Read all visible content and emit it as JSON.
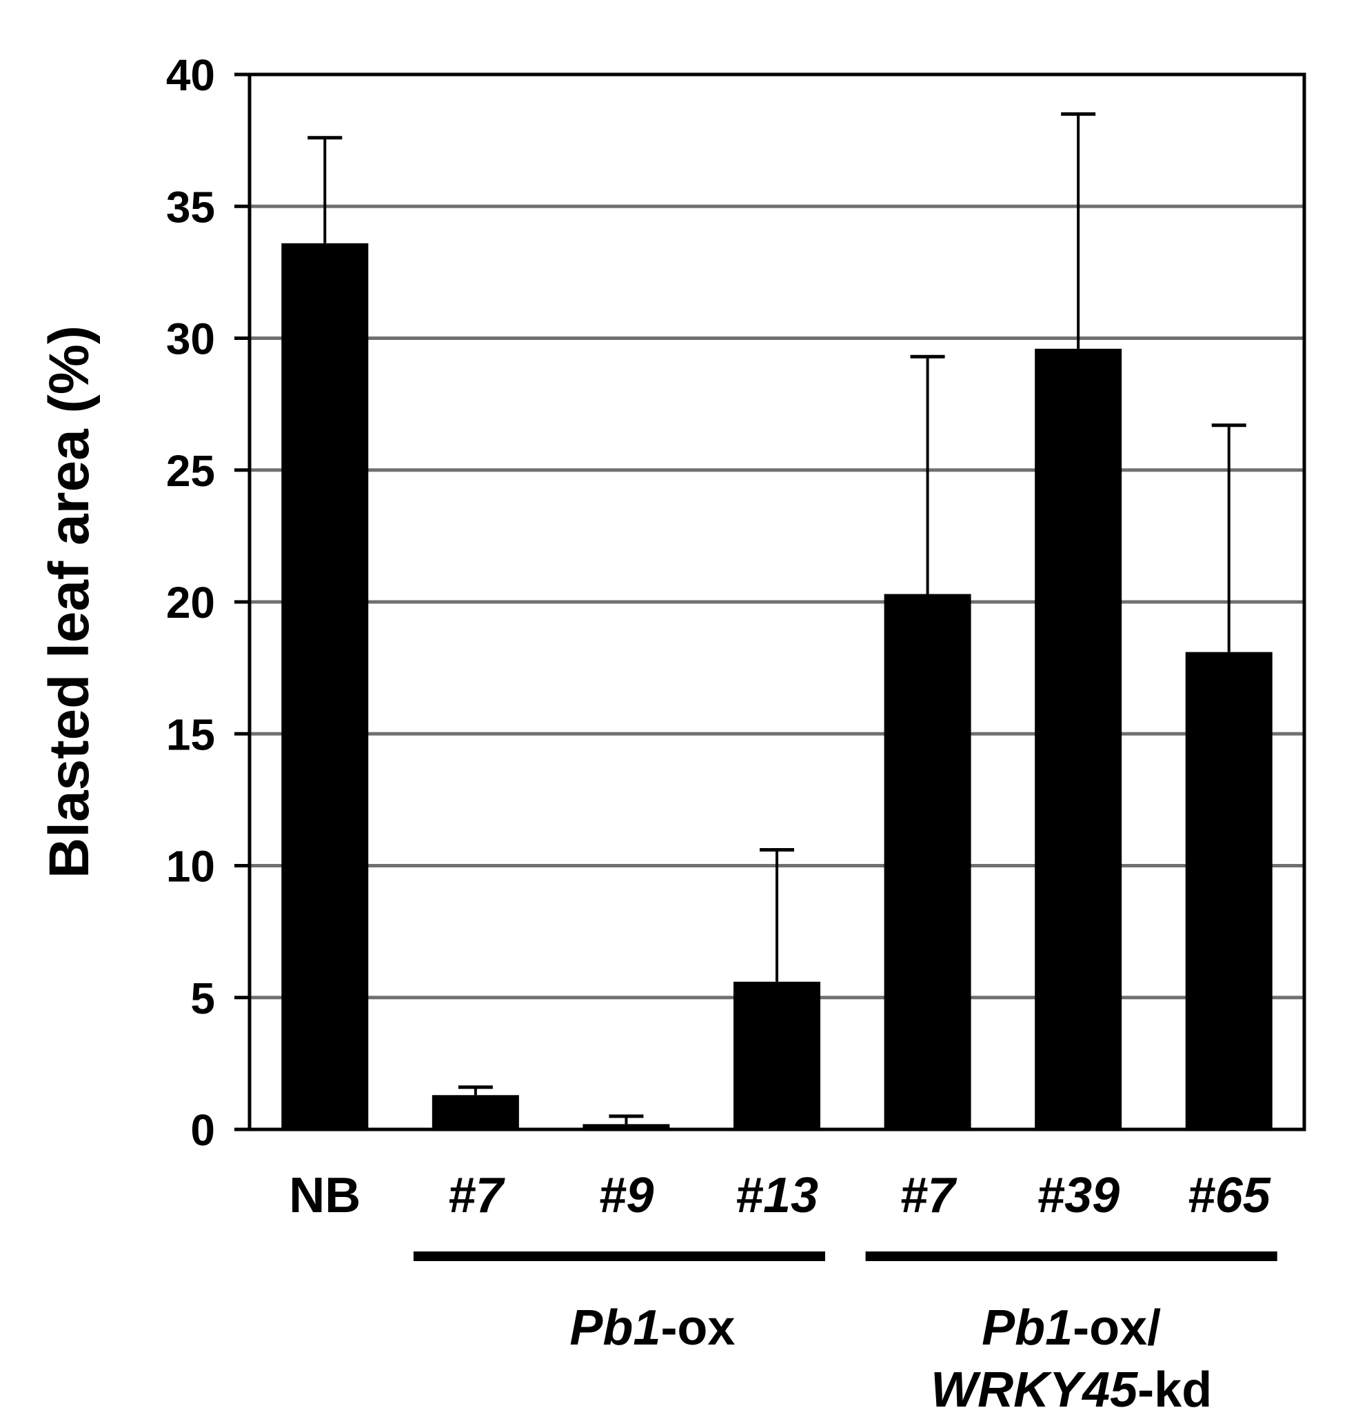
{
  "chart_data": {
    "type": "bar",
    "ylabel": "Blasted leaf area (%)",
    "xlabel": "",
    "ylim": [
      0,
      40
    ],
    "yticks": [
      "0",
      "5",
      "10",
      "15",
      "20",
      "25",
      "30",
      "35",
      "40"
    ],
    "grid": true,
    "categories": [
      "NB",
      "#7",
      "#9",
      "#13",
      "#7",
      "#39",
      "#65"
    ],
    "values": [
      33.6,
      1.3,
      0.2,
      5.6,
      20.3,
      29.6,
      18.1
    ],
    "errors": [
      4.0,
      0.3,
      0.3,
      5.0,
      9.0,
      8.9,
      8.6
    ],
    "bar_color": "#000000",
    "grid_color": "#707070",
    "groups": [
      {
        "italic": "Pb1",
        "plain": "-ox",
        "from": 1,
        "to": 3
      },
      {
        "line1_italic": "Pb1",
        "line1_plain": "-ox/",
        "line2_italic": "WRKY45",
        "line2_plain": "-kd",
        "from": 4,
        "to": 6
      }
    ]
  }
}
